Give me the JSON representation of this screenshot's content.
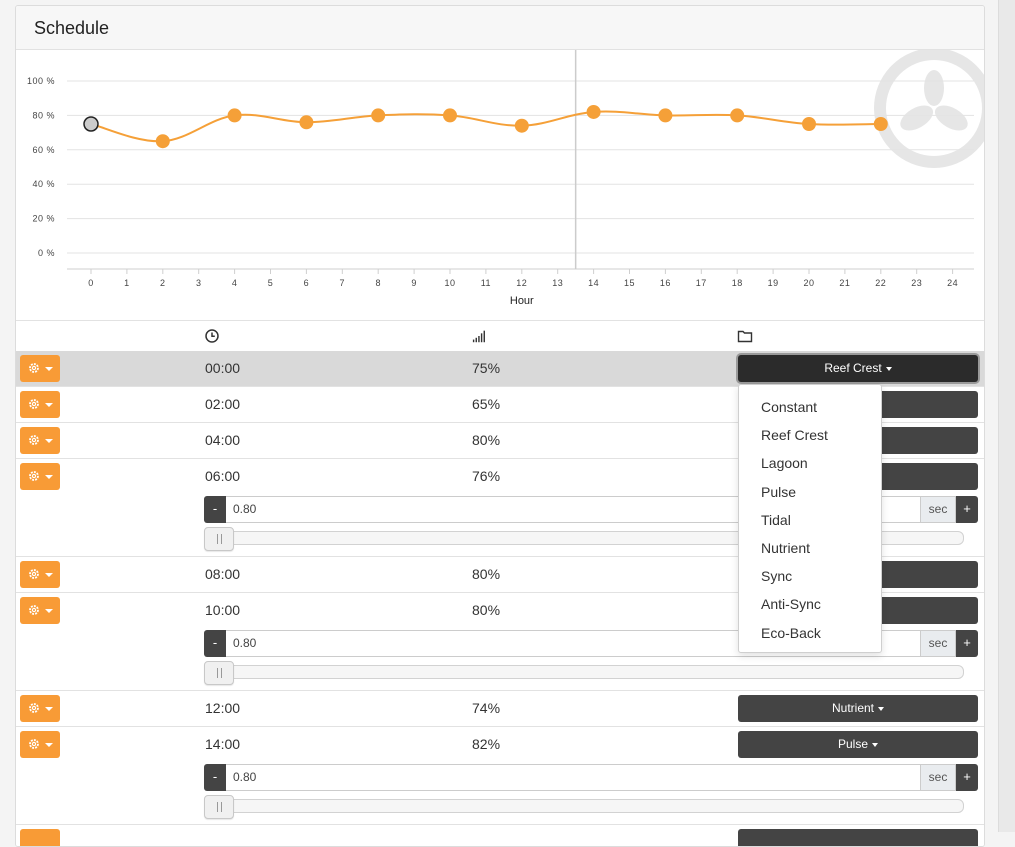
{
  "card": {
    "title": "Schedule"
  },
  "chart_data": {
    "type": "line",
    "xlabel": "Hour",
    "ylabel": "",
    "xlim": [
      0,
      24
    ],
    "ylim": [
      0,
      100
    ],
    "x_ticks": [
      "0",
      "1",
      "2",
      "3",
      "4",
      "5",
      "6",
      "7",
      "8",
      "9",
      "10",
      "11",
      "12",
      "13",
      "14",
      "15",
      "16",
      "17",
      "18",
      "19",
      "20",
      "21",
      "22",
      "23",
      "24"
    ],
    "y_ticks": [
      "0 %",
      "20 %",
      "40 %",
      "60 %",
      "80 %",
      "100 %"
    ],
    "series": [
      {
        "color": "#f5a038",
        "x": [
          0,
          2,
          4,
          6,
          8,
          10,
          12,
          14,
          16,
          18,
          20,
          22
        ],
        "y": [
          75,
          65,
          80,
          76,
          80,
          80,
          74,
          82,
          80,
          80,
          75,
          75
        ]
      }
    ],
    "highlighted_point_index": 0,
    "current_time_marker": 13.5,
    "grid": true
  },
  "table": {
    "header_icons": [
      "clock-icon",
      "signal-bars-icon",
      "folder-icon"
    ],
    "rows": [
      {
        "time": "00:00",
        "level": "75%",
        "mode": "Reef Crest",
        "selected": true
      },
      {
        "time": "02:00",
        "level": "65%",
        "mode": ""
      },
      {
        "time": "04:00",
        "level": "80%",
        "mode": ""
      },
      {
        "time": "06:00",
        "level": "76%",
        "mode": "",
        "stepper": {
          "value": "0.80",
          "unit": "sec",
          "minus": "-",
          "plus": "+"
        }
      },
      {
        "time": "08:00",
        "level": "80%",
        "mode": ""
      },
      {
        "time": "10:00",
        "level": "80%",
        "mode": "",
        "stepper": {
          "value": "0.80",
          "unit": "sec",
          "minus": "-",
          "plus": "+"
        }
      },
      {
        "time": "12:00",
        "level": "74%",
        "mode": "Nutrient"
      },
      {
        "time": "14:00",
        "level": "82%",
        "mode": "Pulse",
        "stepper": {
          "value": "0.80",
          "unit": "sec",
          "minus": "-",
          "plus": "+"
        }
      }
    ]
  },
  "dropdown": {
    "items": [
      "Constant",
      "Reef Crest",
      "Lagoon",
      "Pulse",
      "Tidal",
      "Nutrient",
      "Sync",
      "Anti-Sync",
      "Eco-Back"
    ]
  },
  "colors": {
    "accent": "#f89b36",
    "dark_button": "#444444",
    "line": "#f5a038"
  }
}
